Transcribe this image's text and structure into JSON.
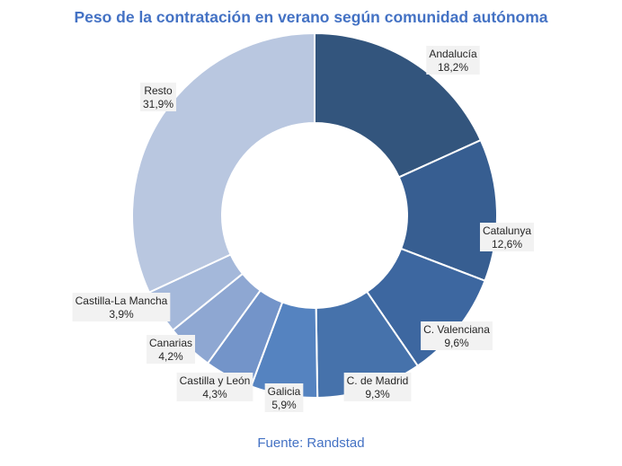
{
  "chart_data": {
    "type": "pie",
    "title": "Peso de la contratación en verano según comunidad autónoma",
    "source": "Fuente: Randstad",
    "slices": [
      {
        "label": "Andalucía",
        "value": 18.2,
        "value_text": "18,2%",
        "color": "#33557d"
      },
      {
        "label": "Catalunya",
        "value": 12.6,
        "value_text": "12,6%",
        "color": "#375e91"
      },
      {
        "label": "C. Valenciana",
        "value": 9.6,
        "value_text": "9,6%",
        "color": "#3d67a0"
      },
      {
        "label": "C. de Madrid",
        "value": 9.3,
        "value_text": "9,3%",
        "color": "#4672ab"
      },
      {
        "label": "Galicia",
        "value": 5.9,
        "value_text": "5,9%",
        "color": "#5583c0"
      },
      {
        "label": "Castilla y León",
        "value": 4.3,
        "value_text": "4,3%",
        "color": "#7394c9"
      },
      {
        "label": "Canarias",
        "value": 4.2,
        "value_text": "4,2%",
        "color": "#8ea7d2"
      },
      {
        "label": "Castilla-La Mancha",
        "value": 3.9,
        "value_text": "3,9%",
        "color": "#a4b8da"
      },
      {
        "label": "Resto",
        "value": 31.9,
        "value_text": "31,9%",
        "color": "#b9c7e0"
      }
    ]
  }
}
